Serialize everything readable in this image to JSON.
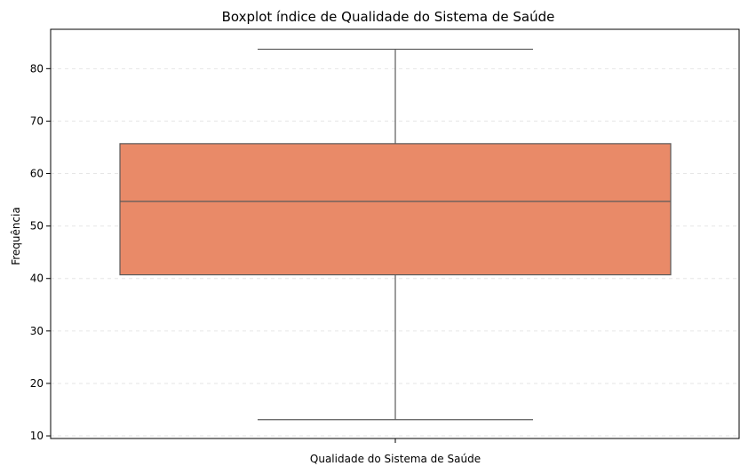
{
  "chart_data": {
    "type": "boxplot",
    "title": "Boxplot índice de Qualidade do Sistema de Saúde",
    "xlabel": "Qualidade do Sistema de Saúde",
    "ylabel": "Frequência",
    "ylim": [
      9.5,
      87.5
    ],
    "yticks": [
      10,
      20,
      30,
      40,
      50,
      60,
      70,
      80
    ],
    "grid": true,
    "box": {
      "whisker_low": 13.1,
      "q1": 40.7,
      "median": 54.7,
      "q3": 65.7,
      "whisker_high": 83.7
    },
    "colors": {
      "box_fill": "#e98a68",
      "line": "#5a5a5a",
      "grid": "#e6e6e6"
    }
  }
}
